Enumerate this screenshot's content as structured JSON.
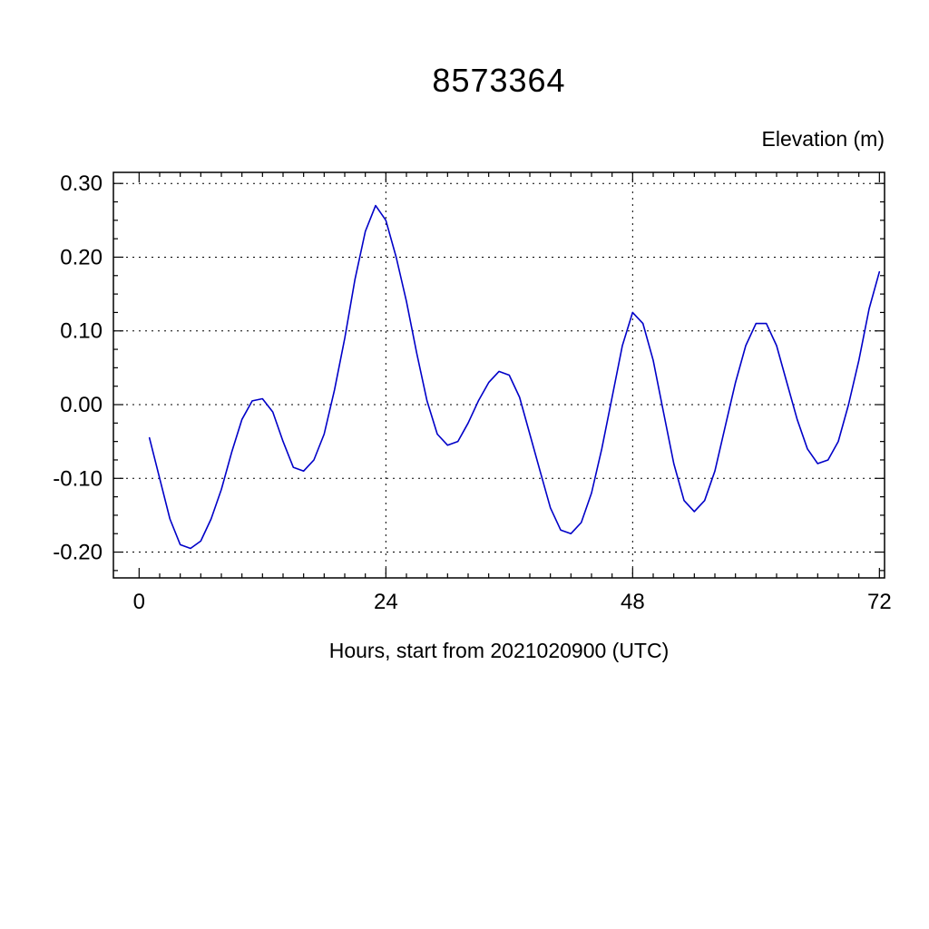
{
  "title": "8573364",
  "y_unit_label": "Elevation (m)",
  "x_axis_label": "Hours, start from 2021020900 (UTC)",
  "chart_data": {
    "type": "line",
    "title": "8573364",
    "xlabel": "Hours, start from 2021020900 (UTC)",
    "ylabel": "Elevation (m)",
    "xlim": [
      -2.5,
      72.5
    ],
    "ylim": [
      -0.235,
      0.315
    ],
    "xticks": [
      0,
      24,
      48,
      72
    ],
    "yticks": [
      -0.2,
      -0.1,
      0.0,
      0.1,
      0.2,
      0.3
    ],
    "x_gridlines": [
      24,
      48
    ],
    "grid": "dashed",
    "line_color": "#0000c8",
    "x": [
      1,
      2,
      3,
      4,
      5,
      6,
      7,
      8,
      9,
      10,
      11,
      12,
      13,
      14,
      15,
      16,
      17,
      18,
      19,
      20,
      21,
      22,
      23,
      24,
      25,
      26,
      27,
      28,
      29,
      30,
      31,
      32,
      33,
      34,
      35,
      36,
      37,
      38,
      39,
      40,
      41,
      42,
      43,
      44,
      45,
      46,
      47,
      48,
      49,
      50,
      51,
      52,
      53,
      54,
      55,
      56,
      57,
      58,
      59,
      60,
      61,
      62,
      63,
      64,
      65,
      66,
      67,
      68,
      69,
      70,
      71,
      72
    ],
    "values": [
      -0.045,
      -0.1,
      -0.155,
      -0.19,
      -0.195,
      -0.185,
      -0.155,
      -0.115,
      -0.065,
      -0.02,
      0.005,
      0.008,
      -0.01,
      -0.05,
      -0.085,
      -0.09,
      -0.075,
      -0.04,
      0.02,
      0.09,
      0.17,
      0.235,
      0.27,
      0.25,
      0.2,
      0.14,
      0.07,
      0.005,
      -0.04,
      -0.055,
      -0.05,
      -0.025,
      0.005,
      0.03,
      0.045,
      0.04,
      0.01,
      -0.04,
      -0.09,
      -0.14,
      -0.17,
      -0.175,
      -0.16,
      -0.12,
      -0.06,
      0.01,
      0.08,
      0.125,
      0.11,
      0.06,
      -0.01,
      -0.08,
      -0.13,
      -0.145,
      -0.13,
      -0.09,
      -0.03,
      0.03,
      0.08,
      0.11,
      0.11,
      0.08,
      0.03,
      -0.02,
      -0.06,
      -0.08,
      -0.075,
      -0.05,
      0.0,
      0.06,
      0.13,
      0.18
    ]
  }
}
